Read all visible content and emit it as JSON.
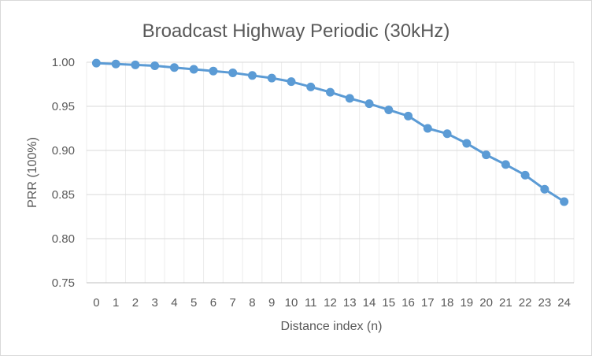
{
  "chart_data": {
    "type": "line",
    "title": "Broadcast Highway Periodic (30kHz)",
    "xlabel": "Distance index (n)",
    "ylabel": "PRR (100%)",
    "x": [
      "0",
      "1",
      "2",
      "3",
      "4",
      "5",
      "6",
      "7",
      "8",
      "9",
      "10",
      "11",
      "12",
      "13",
      "14",
      "15",
      "16",
      "17",
      "18",
      "19",
      "20",
      "21",
      "22",
      "23",
      "24"
    ],
    "series": [
      {
        "values": [
          0.999,
          0.998,
          0.997,
          0.996,
          0.994,
          0.992,
          0.99,
          0.988,
          0.985,
          0.982,
          0.978,
          0.972,
          0.966,
          0.959,
          0.953,
          0.946,
          0.939,
          0.925,
          0.919,
          0.908,
          0.895,
          0.884,
          0.872,
          0.856,
          0.842
        ]
      }
    ],
    "yticks": [
      "0.75",
      "0.80",
      "0.85",
      "0.90",
      "0.95",
      "1.00"
    ],
    "ylim": [
      0.75,
      1.0
    ],
    "grid": true,
    "legend": "none",
    "colors": {
      "line": "#5b9bd5",
      "grid": "#d9d9d9",
      "text": "#595959"
    }
  }
}
